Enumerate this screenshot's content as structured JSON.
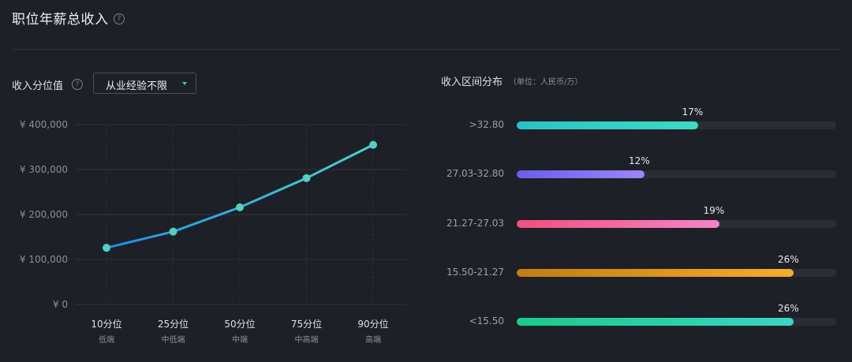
{
  "header": {
    "title": "职位年薪总收入"
  },
  "percentile": {
    "label": "收入分位值",
    "dropdown_value": "从业经验不限"
  },
  "distribution": {
    "label": "收入区间分布",
    "unit": "（单位：人民币/万）",
    "bars": [
      {
        "range": ">32.80",
        "percent_text": "17%",
        "percent": 17,
        "colors": [
          "#28c3c9",
          "#3bdcc2"
        ]
      },
      {
        "range": "27.03-32.80",
        "percent_text": "12%",
        "percent": 12,
        "colors": [
          "#6b5ef0",
          "#9d86f7"
        ]
      },
      {
        "range": "21.27-27.03",
        "percent_text": "19%",
        "percent": 19,
        "colors": [
          "#f0507e",
          "#f683c7"
        ]
      },
      {
        "range": "15.50-21.27",
        "percent_text": "26%",
        "percent": 26,
        "colors": [
          "#c17d12",
          "#f5ad2a"
        ]
      },
      {
        "range": "<15.50",
        "percent_text": "26%",
        "percent": 26,
        "colors": [
          "#19cb8b",
          "#3bd6c4"
        ]
      }
    ]
  },
  "chart_data": {
    "type": "line",
    "categories": [
      "10分位",
      "25分位",
      "50分位",
      "75分位",
      "90分位"
    ],
    "sublabels": [
      "低端",
      "中低端",
      "中端",
      "中高端",
      "高端"
    ],
    "values": [
      126000,
      162000,
      216000,
      281000,
      355000
    ],
    "yticks": [
      "¥ 400,000",
      "¥ 300,000",
      "¥ 200,000",
      "¥ 100,000",
      "¥ 0"
    ],
    "ylim": [
      0,
      400000
    ],
    "line_colors": [
      "#1f8fe8",
      "#4fd0c4"
    ],
    "grid": true
  }
}
